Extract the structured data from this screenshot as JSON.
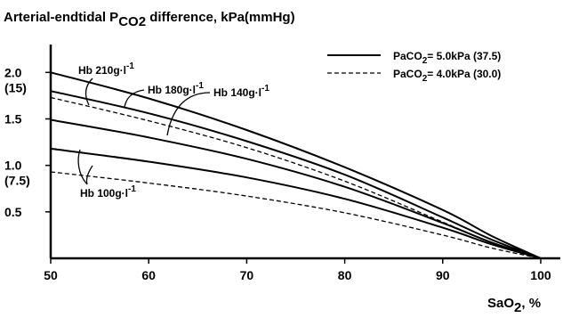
{
  "chart_data": {
    "type": "line",
    "title": "Arterial-endtidal P",
    "title_sub": "CO2",
    "title_suffix": " difference, kPa(mmHg)",
    "xlabel": "SaO",
    "xlabel_sub": "2",
    "xlabel_suffix": ", %",
    "xlim": [
      50,
      102
    ],
    "ylim": [
      0,
      2.3
    ],
    "x_ticks": [
      50,
      60,
      70,
      80,
      90,
      100
    ],
    "y_tick_labels": [
      {
        "value": 2.0,
        "line1": "2.0",
        "line2": "(15)"
      },
      {
        "value": 1.5,
        "line1": "1.5",
        "line2": ""
      },
      {
        "value": 1.0,
        "line1": "1.0",
        "line2": "(7.5)"
      },
      {
        "value": 0.5,
        "line1": "0.5",
        "line2": ""
      }
    ],
    "legend": {
      "position": "top-right",
      "entries": [
        {
          "style": "solid",
          "label": "PaCO2= 5.0kPa (37.5)",
          "label_main": "PaCO",
          "label_sub": "2",
          "label_rest": "= 5.0kPa (37.5)"
        },
        {
          "style": "dashed",
          "label": "PaCO2= 4.0kPa (30.0)",
          "label_main": "PaCO",
          "label_sub": "2",
          "label_rest": "= 4.0kPa (30.0)"
        }
      ]
    },
    "series": [
      {
        "hb": "210",
        "paco2": "5.0",
        "style": "solid",
        "x": [
          50,
          60,
          70,
          80,
          90,
          95,
          100
        ],
        "y": [
          2.0,
          1.72,
          1.38,
          0.98,
          0.52,
          0.24,
          0.0
        ]
      },
      {
        "hb": "180",
        "paco2": "5.0",
        "style": "solid",
        "x": [
          50,
          60,
          70,
          80,
          90,
          95,
          100
        ],
        "y": [
          1.8,
          1.56,
          1.26,
          0.9,
          0.44,
          0.2,
          0.0
        ]
      },
      {
        "hb": "180",
        "paco2": "4.0",
        "style": "dashed",
        "x": [
          50,
          60,
          70,
          80,
          90,
          95,
          100
        ],
        "y": [
          1.73,
          1.48,
          1.19,
          0.83,
          0.39,
          0.17,
          0.0
        ]
      },
      {
        "hb": "140",
        "paco2": "5.0",
        "style": "solid",
        "x": [
          50,
          60,
          70,
          80,
          90,
          95,
          100
        ],
        "y": [
          1.49,
          1.3,
          1.07,
          0.77,
          0.38,
          0.17,
          0.0
        ]
      },
      {
        "hb": "100",
        "paco2": "5.0",
        "style": "solid",
        "x": [
          50,
          60,
          70,
          80,
          90,
          95,
          100
        ],
        "y": [
          1.18,
          1.04,
          0.87,
          0.64,
          0.33,
          0.15,
          0.0
        ]
      },
      {
        "hb": "100",
        "paco2": "4.0",
        "style": "dashed",
        "x": [
          50,
          60,
          70,
          80,
          90,
          95,
          100
        ],
        "y": [
          0.93,
          0.81,
          0.67,
          0.49,
          0.25,
          0.11,
          0.0
        ]
      }
    ],
    "annotations": [
      {
        "main": "Hb 210g·l",
        "sup": "-1"
      },
      {
        "main": "Hb 180g·l",
        "sup": "-1"
      },
      {
        "main": "Hb 140g·l",
        "sup": "-1"
      },
      {
        "main": "Hb 100g·l",
        "sup": "-1"
      }
    ],
    "grid": false
  }
}
